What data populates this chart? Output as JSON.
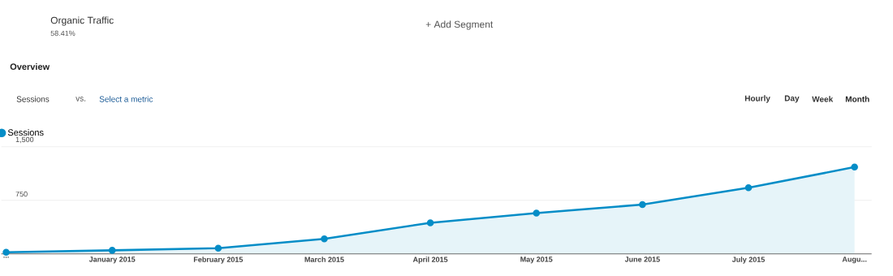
{
  "chart_data": {
    "type": "area",
    "categories": [
      "...",
      "January 2015",
      "February 2015",
      "March 2015",
      "April 2015",
      "May 2015",
      "June 2015",
      "July 2015",
      "Augu..."
    ],
    "series": [
      {
        "name": "Sessions",
        "color": "#058dc7",
        "values": [
          23,
          49,
          80,
          210,
          435,
          570,
          690,
          925,
          1215
        ]
      }
    ],
    "ylim": [
      0,
      1500
    ],
    "yticks": [
      {
        "value": 0,
        "label": null
      },
      {
        "value": 750,
        "label": "750"
      },
      {
        "value": 1500,
        "label": "1,500"
      }
    ],
    "grid": "y",
    "legend": "top left",
    "marker": "circle",
    "annotations": [
      "Organic Traffic",
      "58.41%",
      "+ Add Segment",
      "Overview",
      "Sessions",
      "vs.",
      "Select a metric",
      "Hourly",
      "Day",
      "Week",
      "Month"
    ]
  }
}
